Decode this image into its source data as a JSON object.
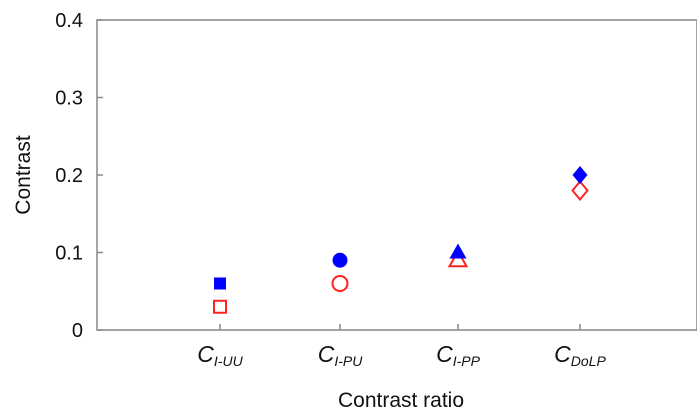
{
  "chart_data": {
    "type": "scatter",
    "title": "",
    "xlabel": "Contrast ratio",
    "ylabel": "Contrast",
    "ylim": [
      0,
      0.4
    ],
    "yticks": [
      "0",
      "0.1",
      "0.2",
      "0.3",
      "0.4"
    ],
    "grid": false,
    "legend": "none",
    "categories": [
      {
        "main": "C",
        "sub": "I-UU"
      },
      {
        "main": "C",
        "sub": "I-PU"
      },
      {
        "main": "C",
        "sub": "I-PP"
      },
      {
        "main": "C",
        "sub": "DoLP"
      }
    ],
    "series": [
      {
        "color": "#0000ff",
        "filled": true,
        "markers": [
          "square",
          "circle",
          "triangle",
          "diamond"
        ],
        "values": [
          0.06,
          0.09,
          0.1,
          0.2
        ]
      },
      {
        "color": "#ff2020",
        "filled": false,
        "markers": [
          "square",
          "circle",
          "triangle",
          "diamond"
        ],
        "values": [
          0.03,
          0.06,
          0.09,
          0.18
        ]
      }
    ]
  }
}
